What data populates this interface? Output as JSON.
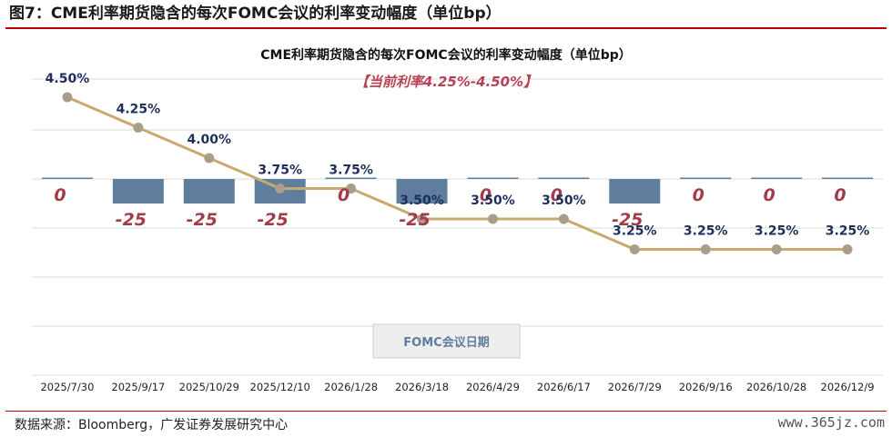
{
  "figure": {
    "title": "图7：CME利率期货隐含的每次FOMC会议的利率变动幅度（单位bp）",
    "source": "数据来源：Bloomberg，广发证券发展研究中心",
    "watermark": "www.365jz.com"
  },
  "chart_data": {
    "type": "bar",
    "title": "CME利率期货隐含的每次FOMC会议的利率变动幅度（单位bp）",
    "annotation": "【当前利率4.25%-4.50%】",
    "xlabel": "FOMC会议日期",
    "ylabel": "",
    "categories": [
      "2025/7/30",
      "2025/9/17",
      "2025/10/29",
      "2025/12/10",
      "2026/1/28",
      "2026/3/18",
      "2026/4/29",
      "2026/6/17",
      "2026/7/29",
      "2026/9/16",
      "2026/10/28",
      "2026/12/9"
    ],
    "bar_values": [
      0,
      -25,
      -25,
      -25,
      0,
      -25,
      0,
      0,
      -25,
      0,
      0,
      0
    ],
    "bar_labels": [
      "0",
      "-25",
      "-25",
      "-25",
      "0",
      "-25",
      "0",
      "0",
      "-25",
      "0",
      "0",
      "0"
    ],
    "line_values": [
      4.5,
      4.25,
      4.0,
      3.75,
      3.75,
      3.5,
      3.5,
      3.5,
      3.25,
      3.25,
      3.25,
      3.25
    ],
    "line_labels": [
      "4.50%",
      "4.25%",
      "4.00%",
      "3.75%",
      "3.75%",
      "3.50%",
      "3.50%",
      "3.50%",
      "3.25%",
      "3.25%",
      "3.25%",
      "3.25%"
    ],
    "grid": true,
    "colors": {
      "bar": "#5f7d9c",
      "line": "#c9aa6d",
      "marker": "#a89e8a",
      "bar_label": "#a33c4a",
      "line_label": "#1f2f5c",
      "annotation": "#b94155",
      "grid": "#d9d9d9"
    }
  }
}
